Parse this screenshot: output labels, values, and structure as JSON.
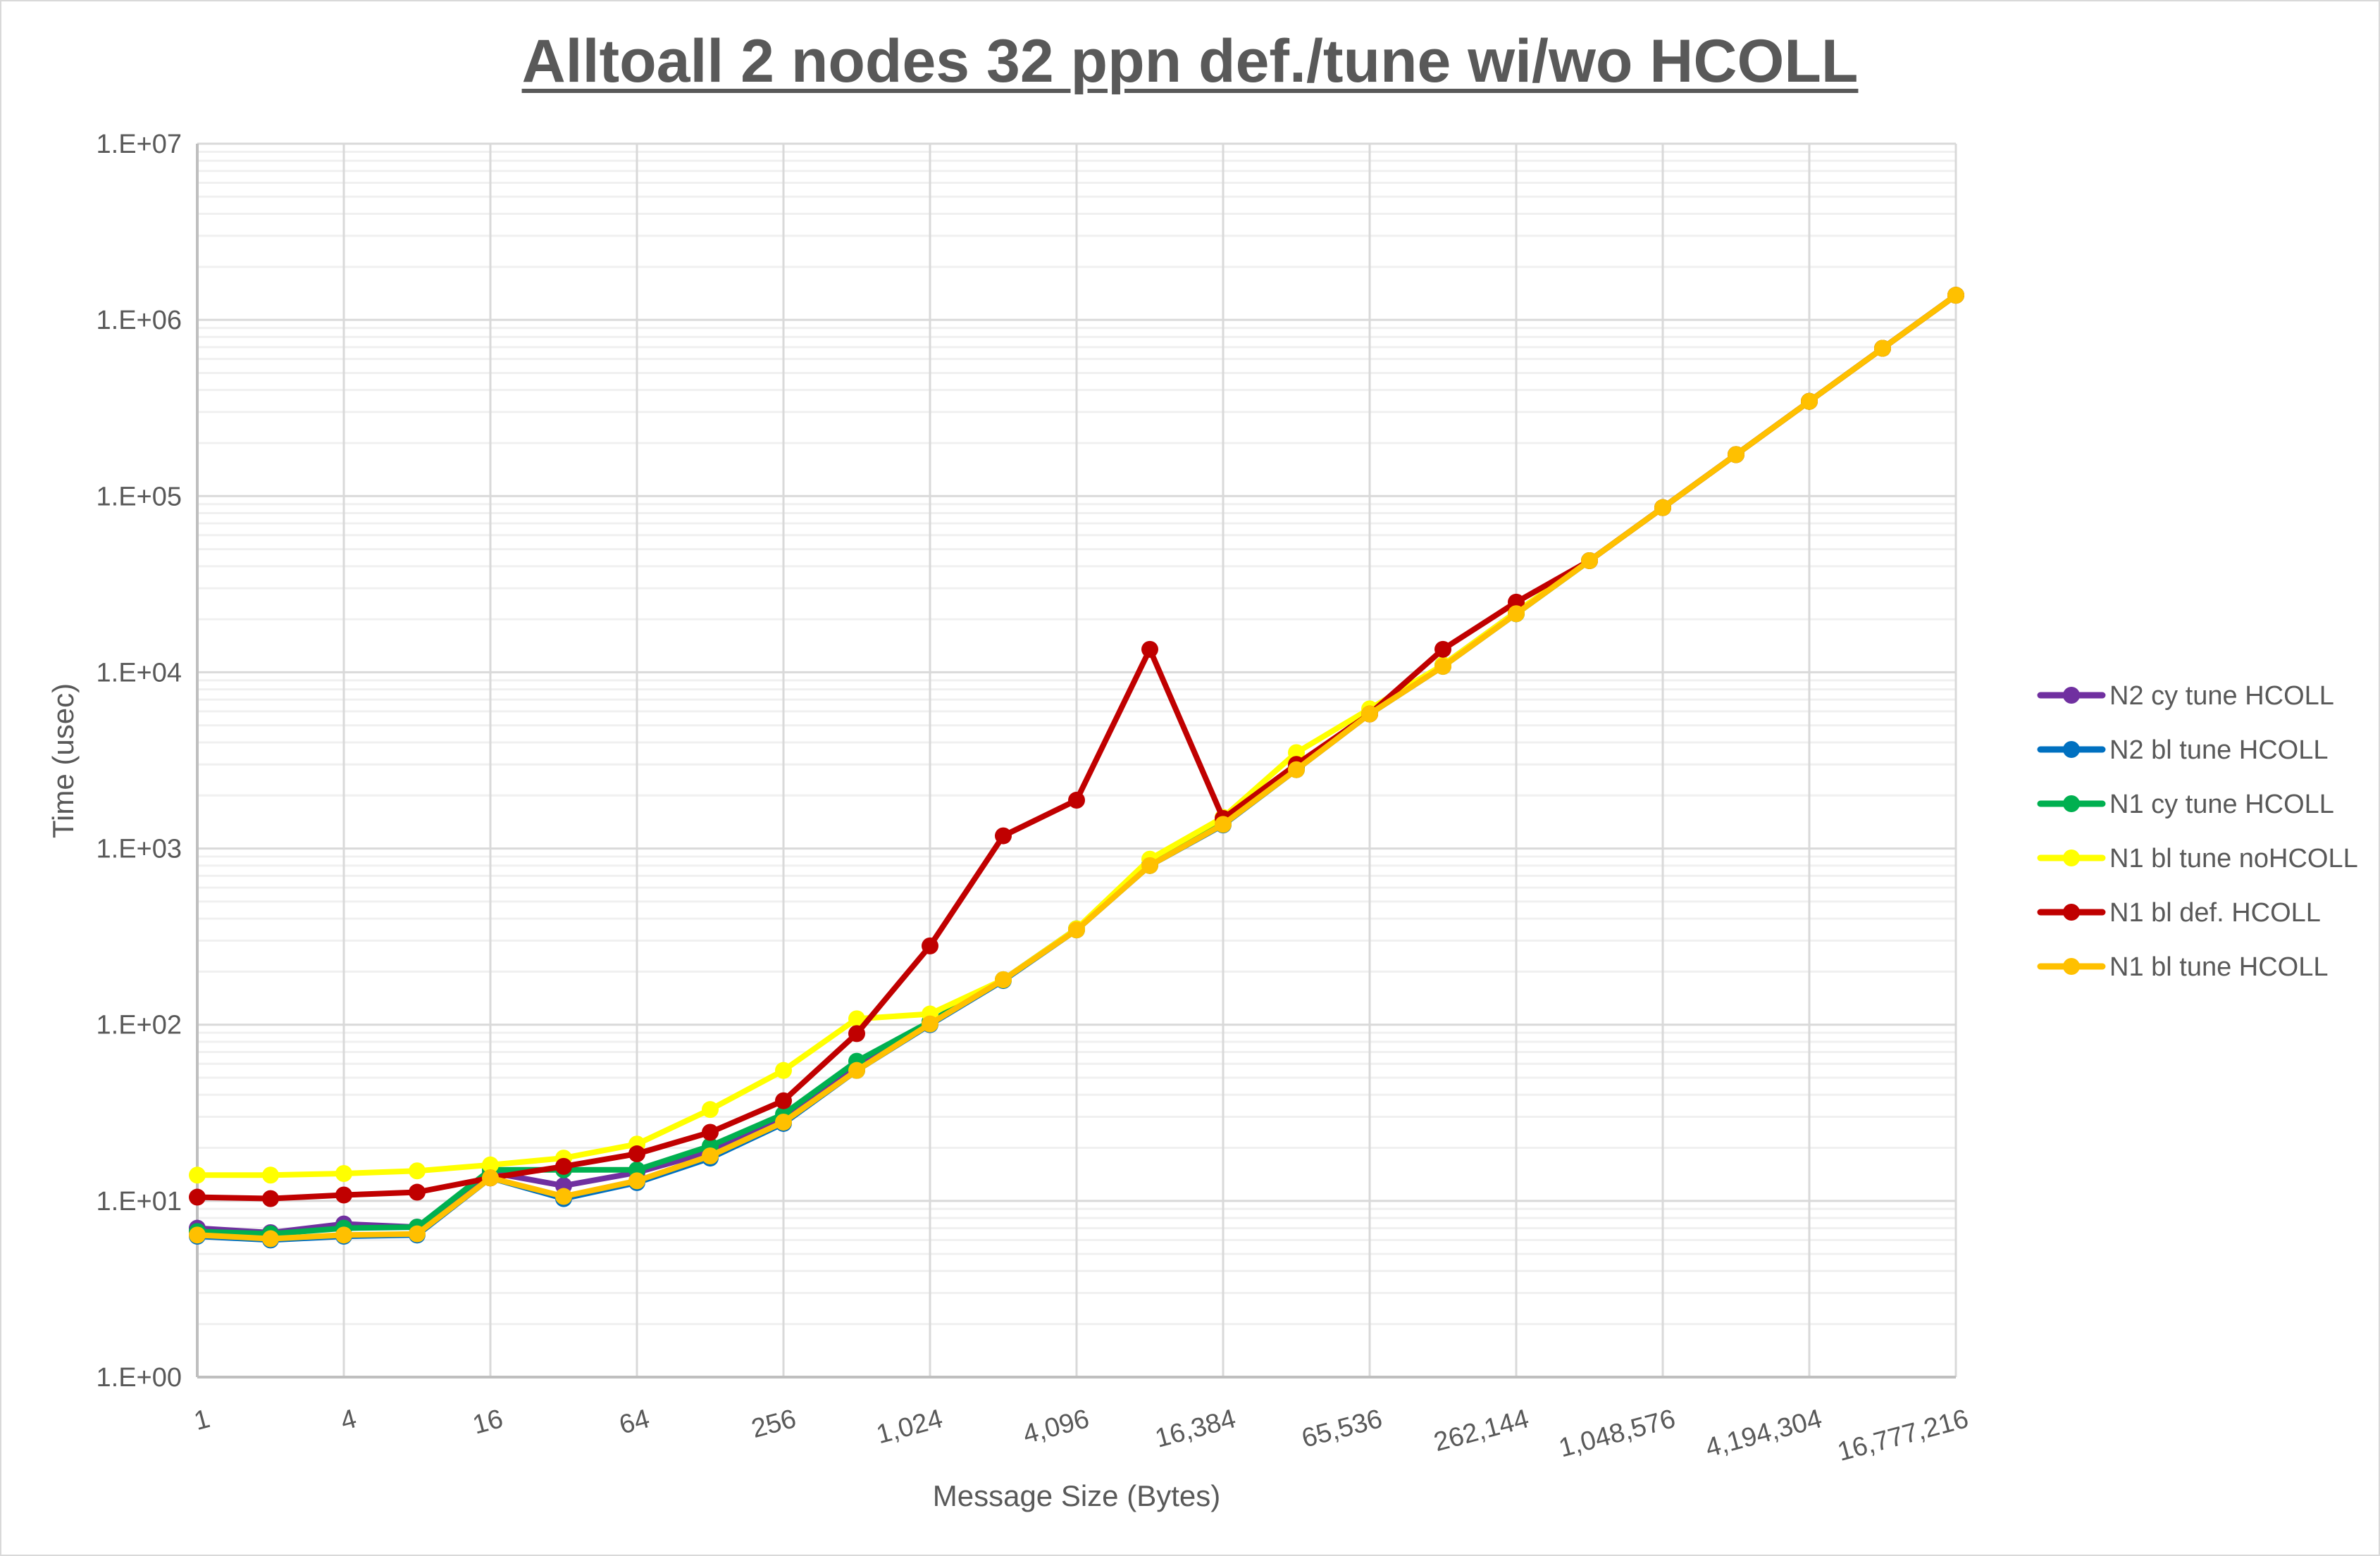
{
  "chart_data": {
    "type": "line",
    "title": "Alltoall 2 nodes 32 ppn def./tune wi/wo HCOLL",
    "xlabel": "Message Size (Bytes)",
    "ylabel": "Time (usec)",
    "xscale": "log2",
    "yscale": "log10",
    "ylim": [
      1,
      10000000
    ],
    "grid": true,
    "legend_position": "right",
    "y_tick_labels": [
      "1.E+00",
      "1.E+01",
      "1.E+02",
      "1.E+03",
      "1.E+04",
      "1.E+05",
      "1.E+06",
      "1.E+07"
    ],
    "x_tick_labels": [
      "1",
      "4",
      "16",
      "64",
      "256",
      "1,024",
      "4,096",
      "16,384",
      "65,536",
      "262,144",
      "1,048,576",
      "4,194,304",
      "16,777,216"
    ],
    "x": [
      1,
      2,
      4,
      8,
      16,
      32,
      64,
      128,
      256,
      512,
      1024,
      2048,
      4096,
      8192,
      16384,
      32768,
      65536,
      131072,
      262144,
      524288,
      1048576,
      2097152,
      4194304,
      8388608,
      16777216
    ],
    "series": [
      {
        "name": "N2 cy tune HCOLL",
        "color": "#7030A0",
        "values": [
          7.0,
          6.6,
          7.4,
          7.1,
          14.5,
          12.2,
          14.5,
          19.0,
          29.0,
          58.0,
          104,
          180,
          350,
          810,
          1380,
          2900,
          5900,
          11000,
          22000,
          43000,
          86000,
          172000,
          345000,
          690000,
          1380000
        ]
      },
      {
        "name": "N2 bl tune HCOLL",
        "color": "#0070C0",
        "values": [
          6.3,
          6.0,
          6.3,
          6.4,
          13.5,
          10.3,
          12.7,
          17.5,
          27.5,
          55.0,
          100,
          178,
          345,
          800,
          1360,
          2800,
          5800,
          10800,
          21500,
          43000,
          86000,
          172000,
          345000,
          690000,
          1380000
        ]
      },
      {
        "name": "N1 cy tune HCOLL",
        "color": "#00B050",
        "values": [
          6.7,
          6.5,
          7.0,
          7.1,
          15.0,
          15.0,
          15.0,
          20.5,
          31.0,
          62.0,
          104,
          180,
          350,
          810,
          1380,
          2850,
          5900,
          11000,
          21500,
          43000,
          86000,
          172000,
          345000,
          690000,
          1380000
        ]
      },
      {
        "name": "N1 bl tune noHCOLL",
        "color": "#FFFF00",
        "values": [
          14.0,
          14.0,
          14.3,
          14.8,
          16.0,
          17.5,
          21.0,
          33.0,
          55.0,
          108,
          115,
          180,
          350,
          870,
          1500,
          3500,
          6200,
          11000,
          22000,
          43000,
          86000,
          172000,
          345000,
          690000,
          1380000
        ]
      },
      {
        "name": "N1 bl def. HCOLL",
        "color": "#C00000",
        "values": [
          10.5,
          10.3,
          10.8,
          11.2,
          13.5,
          15.7,
          18.5,
          24.5,
          37.0,
          89.0,
          280,
          1180,
          1880,
          13500,
          1480,
          3000,
          5800,
          13500,
          25000,
          43000,
          86000,
          172000,
          345000,
          690000,
          1380000
        ]
      },
      {
        "name": "N1 bl tune HCOLL",
        "color": "#FFC000",
        "values": [
          6.4,
          6.1,
          6.4,
          6.5,
          13.5,
          10.6,
          13.0,
          18.0,
          28.0,
          55.0,
          101,
          180,
          345,
          800,
          1370,
          2800,
          5800,
          10800,
          21500,
          43000,
          86000,
          172000,
          345000,
          690000,
          1380000
        ]
      }
    ]
  }
}
